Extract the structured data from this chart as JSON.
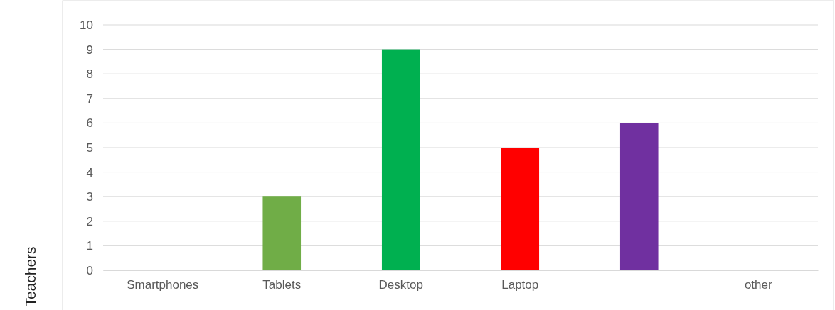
{
  "chart_data": {
    "type": "bar",
    "ylabel": "Teachers",
    "categories": [
      "Smartphones",
      "Tablets",
      "Desktop",
      "Laptop",
      null,
      "other"
    ],
    "values": [
      0,
      3,
      9,
      5,
      6,
      0
    ],
    "colors": [
      "#4472c4",
      "#70ad47",
      "#00b050",
      "#ff0000",
      "#7030a0",
      "#4472c4"
    ],
    "ylim": [
      0,
      10
    ],
    "yticks": [
      0,
      1,
      2,
      3,
      4,
      5,
      6,
      7,
      8,
      9,
      10
    ],
    "grid": "y"
  }
}
